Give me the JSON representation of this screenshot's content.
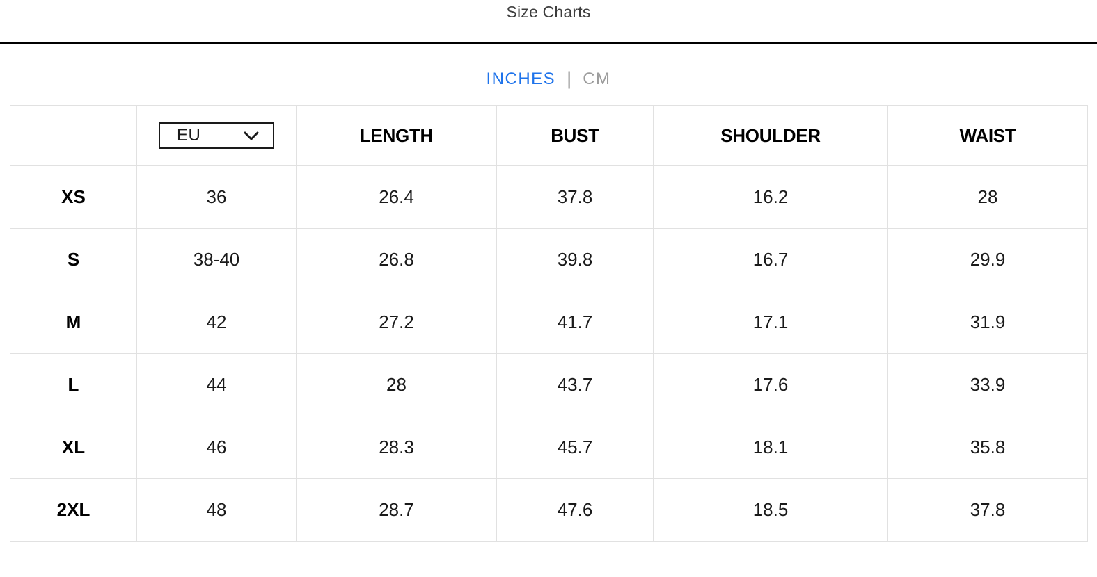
{
  "header": {
    "title": "Size Charts"
  },
  "unit_toggle": {
    "inches_label": "INCHES",
    "cm_label": "CM",
    "separator": "|",
    "selected": "INCHES"
  },
  "size_chart": {
    "region_selector": {
      "value": "EU",
      "icon": "chevron-down-icon"
    },
    "columns": [
      "LENGTH",
      "BUST",
      "SHOULDER",
      "WAIST"
    ],
    "rows": [
      {
        "size": "XS",
        "region": "36",
        "values": [
          "26.4",
          "37.8",
          "16.2",
          "28"
        ]
      },
      {
        "size": "S",
        "region": "38-40",
        "values": [
          "26.8",
          "39.8",
          "16.7",
          "29.9"
        ]
      },
      {
        "size": "M",
        "region": "42",
        "values": [
          "27.2",
          "41.7",
          "17.1",
          "31.9"
        ]
      },
      {
        "size": "L",
        "region": "44",
        "values": [
          "28",
          "43.7",
          "17.6",
          "33.9"
        ]
      },
      {
        "size": "XL",
        "region": "46",
        "values": [
          "28.3",
          "45.7",
          "18.1",
          "35.8"
        ]
      },
      {
        "size": "2XL",
        "region": "48",
        "values": [
          "28.7",
          "47.6",
          "18.5",
          "37.8"
        ]
      }
    ]
  },
  "colors": {
    "accent_blue": "#1e73eb",
    "inactive_gray": "#9c9c9c",
    "table_border": "#e1e1e1",
    "divider_black": "#000000"
  }
}
